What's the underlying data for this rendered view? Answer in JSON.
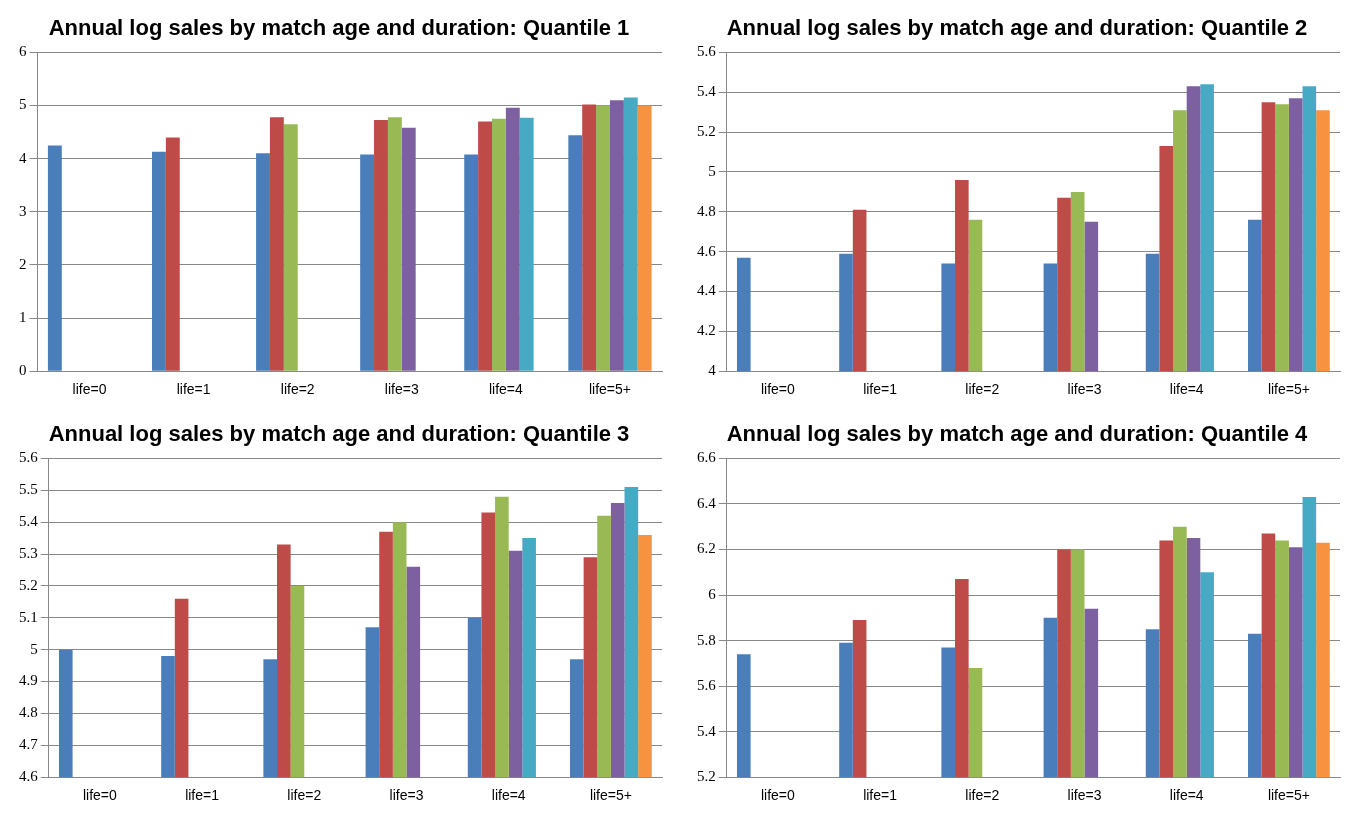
{
  "chart_data": [
    {
      "type": "bar",
      "title": "Annual log sales by match age and duration: Quantile 1",
      "categories": [
        "life=0",
        "life=1",
        "life=2",
        "life=3",
        "life=4",
        "life=5+"
      ],
      "ylim": [
        0,
        6
      ],
      "yticks": [
        0,
        1,
        2,
        3,
        4,
        5,
        6
      ],
      "grid": "y",
      "series": [
        {
          "color": "#4a7ebb",
          "values": [
            4.25,
            4.13,
            4.1,
            4.08,
            4.08,
            4.44
          ]
        },
        {
          "color": "#be4b48",
          "values": [
            null,
            4.4,
            4.78,
            4.73,
            4.7,
            5.02
          ]
        },
        {
          "color": "#98b954",
          "values": [
            null,
            null,
            4.65,
            4.78,
            4.75,
            5.0
          ]
        },
        {
          "color": "#7d60a0",
          "values": [
            null,
            null,
            null,
            4.58,
            4.96,
            5.1
          ]
        },
        {
          "color": "#46aac5",
          "values": [
            null,
            null,
            null,
            null,
            4.77,
            5.15
          ]
        },
        {
          "color": "#f69240",
          "values": [
            null,
            null,
            null,
            null,
            null,
            5.0
          ]
        }
      ]
    },
    {
      "type": "bar",
      "title": "Annual log sales by match age and duration: Quantile 2",
      "categories": [
        "life=0",
        "life=1",
        "life=2",
        "life=3",
        "life=4",
        "life=5+"
      ],
      "ylim": [
        4,
        5.6
      ],
      "yticks": [
        4,
        4.2,
        4.4,
        4.6,
        4.8,
        5,
        5.2,
        5.4,
        5.6
      ],
      "grid": "y",
      "series": [
        {
          "color": "#4a7ebb",
          "values": [
            4.57,
            4.59,
            4.54,
            4.54,
            4.59,
            4.76
          ]
        },
        {
          "color": "#be4b48",
          "values": [
            null,
            4.81,
            4.96,
            4.87,
            5.13,
            5.35
          ]
        },
        {
          "color": "#98b954",
          "values": [
            null,
            null,
            4.76,
            4.9,
            5.31,
            5.34
          ]
        },
        {
          "color": "#7d60a0",
          "values": [
            null,
            null,
            null,
            4.75,
            5.43,
            5.37
          ]
        },
        {
          "color": "#46aac5",
          "values": [
            null,
            null,
            null,
            null,
            5.44,
            5.43
          ]
        },
        {
          "color": "#f69240",
          "values": [
            null,
            null,
            null,
            null,
            null,
            5.31
          ]
        }
      ]
    },
    {
      "type": "bar",
      "title": "Annual log sales by match age and duration: Quantile 3",
      "categories": [
        "life=0",
        "life=1",
        "life=2",
        "life=3",
        "life=4",
        "life=5+"
      ],
      "ylim": [
        4.6,
        5.6
      ],
      "yticks": [
        4.6,
        4.7,
        4.8,
        4.9,
        5,
        5.1,
        5.2,
        5.3,
        5.4,
        5.5,
        5.6
      ],
      "grid": "y",
      "series": [
        {
          "color": "#4a7ebb",
          "values": [
            5.0,
            4.98,
            4.97,
            5.07,
            5.1,
            4.97
          ]
        },
        {
          "color": "#be4b48",
          "values": [
            null,
            5.16,
            5.33,
            5.37,
            5.43,
            5.29
          ]
        },
        {
          "color": "#98b954",
          "values": [
            null,
            null,
            5.2,
            5.4,
            5.48,
            5.42
          ]
        },
        {
          "color": "#7d60a0",
          "values": [
            null,
            null,
            null,
            5.26,
            5.31,
            5.46
          ]
        },
        {
          "color": "#46aac5",
          "values": [
            null,
            null,
            null,
            null,
            5.35,
            5.51
          ]
        },
        {
          "color": "#f69240",
          "values": [
            null,
            null,
            null,
            null,
            null,
            5.36
          ]
        }
      ]
    },
    {
      "type": "bar",
      "title": "Annual log sales by match age and duration: Quantile 4",
      "categories": [
        "life=0",
        "life=1",
        "life=2",
        "life=3",
        "life=4",
        "life=5+"
      ],
      "ylim": [
        5.2,
        6.6
      ],
      "yticks": [
        5.2,
        5.4,
        5.6,
        5.8,
        6,
        6.2,
        6.4,
        6.6
      ],
      "grid": "y",
      "series": [
        {
          "color": "#4a7ebb",
          "values": [
            5.74,
            5.79,
            5.77,
            5.9,
            5.85,
            5.83
          ]
        },
        {
          "color": "#be4b48",
          "values": [
            null,
            5.89,
            6.07,
            6.2,
            6.24,
            6.27
          ]
        },
        {
          "color": "#98b954",
          "values": [
            null,
            null,
            5.68,
            6.2,
            6.3,
            6.24
          ]
        },
        {
          "color": "#7d60a0",
          "values": [
            null,
            null,
            null,
            5.94,
            6.25,
            6.21
          ]
        },
        {
          "color": "#46aac5",
          "values": [
            null,
            null,
            null,
            null,
            6.1,
            6.43
          ]
        },
        {
          "color": "#f69240",
          "values": [
            null,
            null,
            null,
            null,
            null,
            6.23
          ]
        }
      ]
    }
  ]
}
